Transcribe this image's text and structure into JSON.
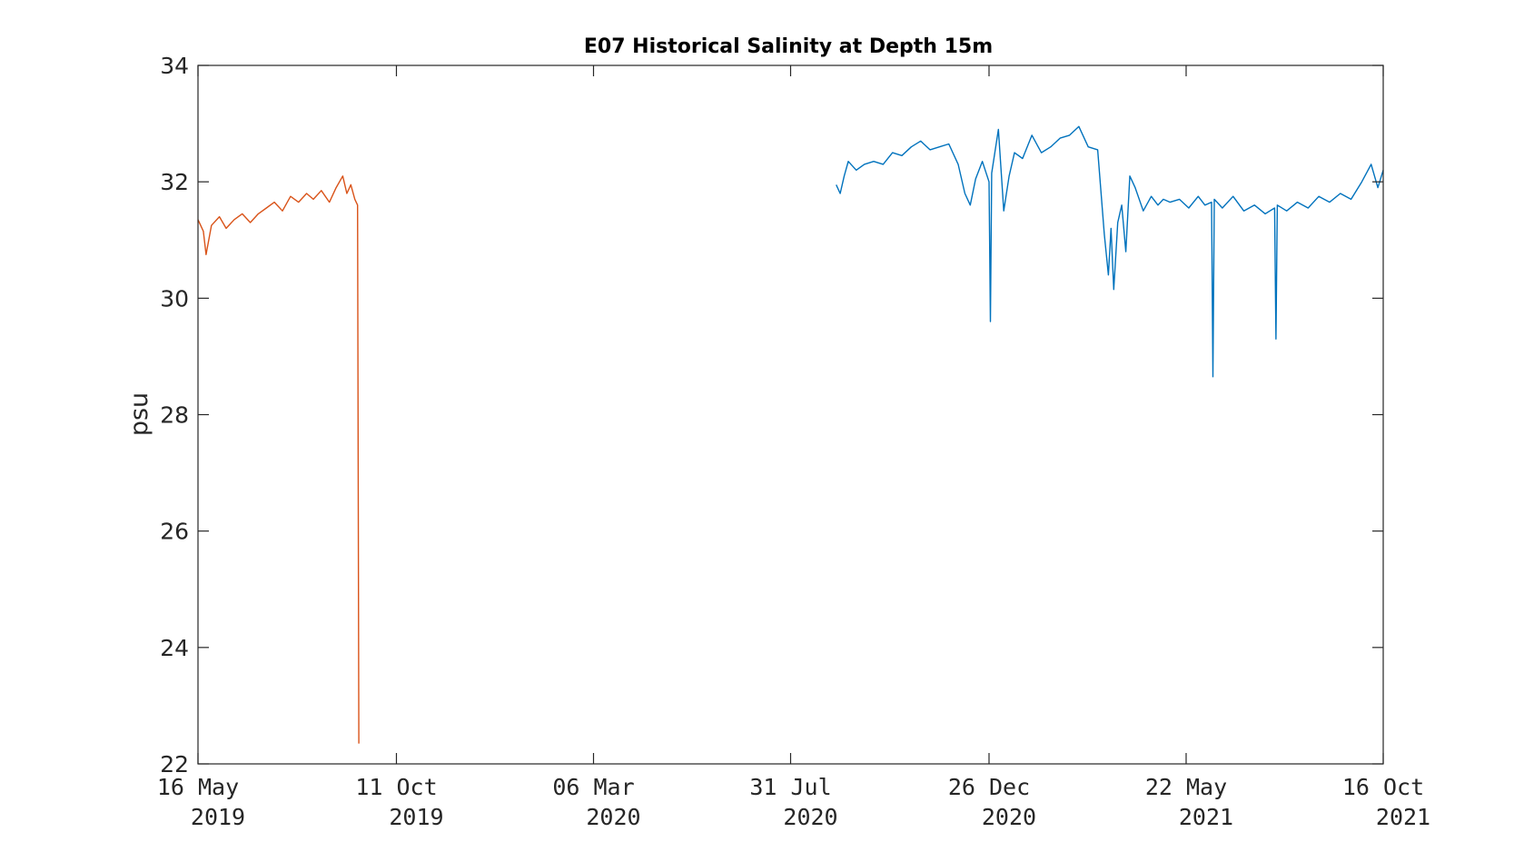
{
  "chart_data": {
    "type": "line",
    "title": "E07 Historical Salinity at Depth 15m",
    "xlabel": "",
    "ylabel": "psu",
    "xlim": [
      "2019-05-16",
      "2021-10-16"
    ],
    "ylim": [
      22,
      34
    ],
    "grid": false,
    "legend": "none",
    "x_ticks": [
      {
        "date": "2019-05-16",
        "line1": "16 May",
        "line2": "2019"
      },
      {
        "date": "2019-10-11",
        "line1": "11 Oct",
        "line2": "2019"
      },
      {
        "date": "2020-03-06",
        "line1": "06 Mar",
        "line2": "2020"
      },
      {
        "date": "2020-07-31",
        "line1": "31 Jul",
        "line2": "2020"
      },
      {
        "date": "2020-12-26",
        "line1": "26 Dec",
        "line2": "2020"
      },
      {
        "date": "2021-05-22",
        "line1": "22 May",
        "line2": "2021"
      },
      {
        "date": "2021-10-16",
        "line1": "16 Oct",
        "line2": "2021"
      }
    ],
    "y_ticks": [
      22,
      24,
      26,
      28,
      30,
      32,
      34
    ],
    "series": [
      {
        "color": "#D95319",
        "x": [
          "2019-05-16",
          "2019-05-20",
          "2019-05-22",
          "2019-05-26",
          "2019-06-01",
          "2019-06-06",
          "2019-06-12",
          "2019-06-18",
          "2019-06-24",
          "2019-06-30",
          "2019-07-06",
          "2019-07-12",
          "2019-07-18",
          "2019-07-24",
          "2019-07-30",
          "2019-08-05",
          "2019-08-10",
          "2019-08-16",
          "2019-08-22",
          "2019-08-27",
          "2019-09-01",
          "2019-09-04",
          "2019-09-07",
          "2019-09-10",
          "2019-09-12",
          "2019-09-13"
        ],
        "y": [
          31.35,
          31.15,
          30.75,
          31.25,
          31.4,
          31.2,
          31.35,
          31.45,
          31.3,
          31.45,
          31.55,
          31.65,
          31.5,
          31.75,
          31.65,
          31.8,
          31.7,
          31.85,
          31.65,
          31.9,
          32.1,
          31.8,
          31.95,
          31.7,
          31.6,
          22.35
        ]
      },
      {
        "color": "#0072BD",
        "x": [
          "2020-09-03",
          "2020-09-06",
          "2020-09-09",
          "2020-09-12",
          "2020-09-18",
          "2020-09-24",
          "2020-10-01",
          "2020-10-08",
          "2020-10-15",
          "2020-10-22",
          "2020-10-29",
          "2020-11-05",
          "2020-11-12",
          "2020-11-19",
          "2020-11-26",
          "2020-12-03",
          "2020-12-08",
          "2020-12-12",
          "2020-12-16",
          "2020-12-21",
          "2020-12-26",
          "2020-12-27",
          "2020-12-28",
          "2021-01-02",
          "2021-01-06",
          "2021-01-10",
          "2021-01-14",
          "2021-01-20",
          "2021-01-27",
          "2021-02-03",
          "2021-02-10",
          "2021-02-17",
          "2021-02-24",
          "2021-03-03",
          "2021-03-10",
          "2021-03-17",
          "2021-03-22",
          "2021-03-25",
          "2021-03-27",
          "2021-03-29",
          "2021-04-01",
          "2021-04-04",
          "2021-04-07",
          "2021-04-10",
          "2021-04-14",
          "2021-04-20",
          "2021-04-26",
          "2021-05-01",
          "2021-05-05",
          "2021-05-10",
          "2021-05-17",
          "2021-05-24",
          "2021-05-31",
          "2021-06-05",
          "2021-06-10",
          "2021-06-11",
          "2021-06-12",
          "2021-06-18",
          "2021-06-26",
          "2021-07-04",
          "2021-07-12",
          "2021-07-20",
          "2021-07-27",
          "2021-07-28",
          "2021-07-29",
          "2021-08-05",
          "2021-08-13",
          "2021-08-21",
          "2021-08-29",
          "2021-09-06",
          "2021-09-14",
          "2021-09-22",
          "2021-09-30",
          "2021-10-07",
          "2021-10-12",
          "2021-10-16"
        ],
        "y": [
          31.95,
          31.8,
          32.1,
          32.35,
          32.2,
          32.3,
          32.35,
          32.3,
          32.5,
          32.45,
          32.6,
          32.7,
          32.55,
          32.6,
          32.65,
          32.3,
          31.8,
          31.6,
          32.05,
          32.35,
          32.0,
          29.6,
          32.15,
          32.9,
          31.5,
          32.1,
          32.5,
          32.4,
          32.8,
          32.5,
          32.6,
          32.75,
          32.8,
          32.95,
          32.6,
          32.55,
          31.1,
          30.4,
          31.2,
          30.15,
          31.3,
          31.6,
          30.8,
          32.1,
          31.9,
          31.5,
          31.75,
          31.6,
          31.7,
          31.65,
          31.7,
          31.55,
          31.75,
          31.6,
          31.65,
          28.65,
          31.7,
          31.55,
          31.75,
          31.5,
          31.6,
          31.45,
          31.55,
          29.3,
          31.6,
          31.5,
          31.65,
          31.55,
          31.75,
          31.65,
          31.8,
          31.7,
          32.0,
          32.3,
          31.9,
          32.2
        ]
      }
    ]
  }
}
